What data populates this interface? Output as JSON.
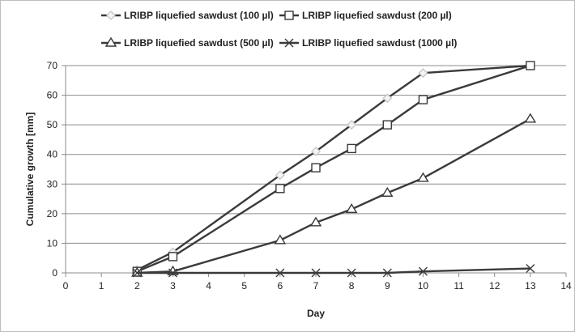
{
  "chart_data": {
    "type": "line",
    "xlabel": "Day",
    "ylabel": "Cumulative growth [mm]",
    "xlim": [
      0,
      14
    ],
    "ylim": [
      0,
      70
    ],
    "xticks": [
      "0",
      "1",
      "2",
      "3",
      "4",
      "5",
      "6",
      "7",
      "8",
      "9",
      "10",
      "11",
      "12",
      "13",
      "14"
    ],
    "yticks": [
      "0",
      "10",
      "20",
      "30",
      "40",
      "50",
      "60",
      "70"
    ],
    "grid": "horizontal",
    "legend_position": "top",
    "line_color": "#3a3a3a",
    "x": [
      2,
      3,
      6,
      7,
      8,
      9,
      10,
      13
    ],
    "series": [
      {
        "name": "LRIBP liquefied sawdust (100 µl)",
        "marker": "diamond",
        "marker_color": "#c8c8c8",
        "values": [
          1,
          7,
          33,
          41,
          50,
          59,
          67.5,
          70
        ]
      },
      {
        "name": "LRIBP liquefied sawdust (200 µl)",
        "marker": "square",
        "marker_color": "#3a3a3a",
        "values": [
          0.5,
          5.5,
          28.5,
          35.5,
          42,
          50,
          58.5,
          70
        ]
      },
      {
        "name": "LRIBP liquefied sawdust (500 µl)",
        "marker": "triangle",
        "marker_color": "#3a3a3a",
        "values": [
          0,
          0.5,
          11,
          17,
          21.5,
          27,
          32,
          52
        ]
      },
      {
        "name": "LRIBP liquefied sawdust (1000 µl)",
        "marker": "x",
        "marker_color": "#3a3a3a",
        "values": [
          0,
          0,
          0,
          0,
          0,
          0,
          0.5,
          1.5
        ]
      }
    ]
  }
}
